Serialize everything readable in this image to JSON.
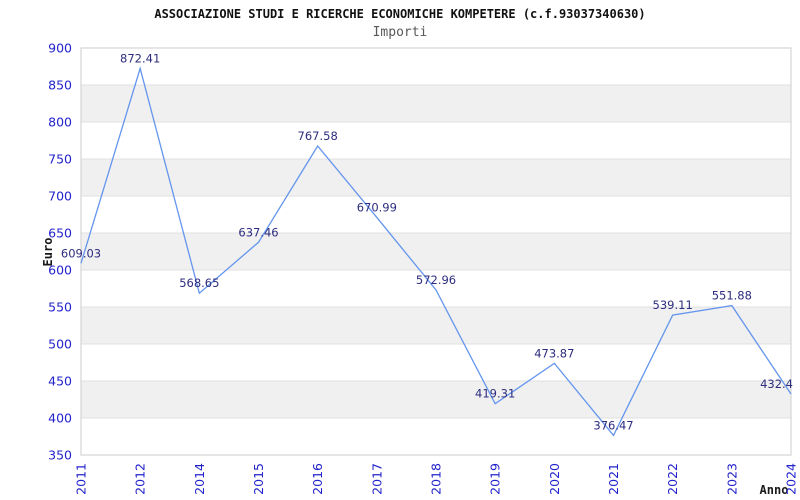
{
  "chart_data": {
    "type": "line",
    "title": "ASSOCIAZIONE STUDI E RICERCHE ECONOMICHE KOMPETERE (c.f.93037340630)",
    "subtitle": "Importi",
    "xlabel": "Anno",
    "ylabel": "Euro",
    "categories": [
      "2011",
      "2012",
      "2014",
      "2015",
      "2016",
      "2017",
      "2018",
      "2019",
      "2020",
      "2021",
      "2022",
      "2023",
      "2024"
    ],
    "values": [
      609.03,
      872.41,
      568.65,
      637.46,
      767.58,
      670.99,
      572.96,
      419.31,
      473.87,
      376.47,
      539.11,
      551.88,
      432.4
    ],
    "point_labels": [
      "609.03",
      "872.41",
      "568.65",
      "637.46",
      "767.58",
      "670.99",
      "572.96",
      "419.31",
      "473.87",
      "376.47",
      "539.11",
      "551.88",
      "432.4"
    ],
    "ylim": [
      350,
      900
    ],
    "ytick_step": 50,
    "yticks": [
      350,
      400,
      450,
      500,
      550,
      600,
      650,
      700,
      750,
      800,
      850,
      900
    ],
    "grid": "horizontal gridlines with alternating shaded bands",
    "legend": "none",
    "colors": {
      "line": "#6495ED",
      "tick_label": "#2323cc",
      "data_label": "#2d2d7f",
      "band_fill": "#f0f0f0",
      "gridline": "#e0e0e0",
      "plot_border": "#d4d4d4",
      "title": "#111111",
      "subtitle": "#595959",
      "axis_title": "#1a1a1a",
      "background": "#ffffff"
    }
  }
}
